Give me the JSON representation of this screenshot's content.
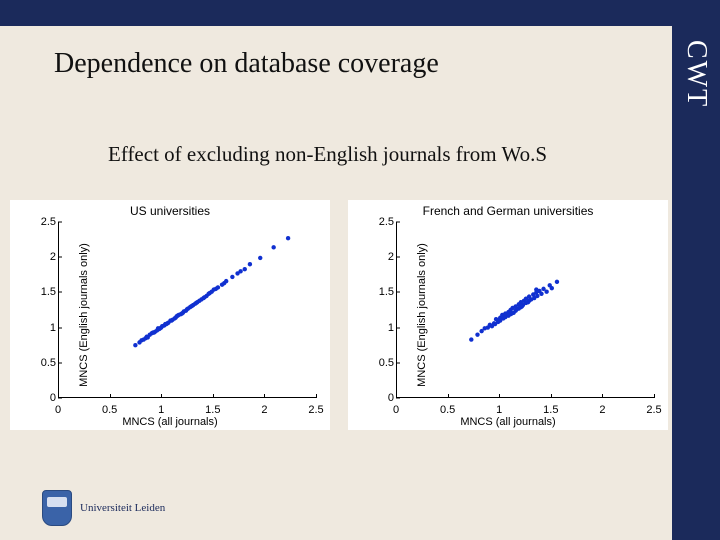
{
  "slide": {
    "title": "Dependence on database coverage",
    "subtitle": "Effect of excluding non-English journals from Wo.S",
    "background_color": "#efe9df",
    "accent_color": "#1b2a5b",
    "sidebar_text": "CWT"
  },
  "footer": {
    "university": "Universiteit Leiden",
    "crest_color": "#3a63a8"
  },
  "chart_common": {
    "xlabel": "MNCS (all journals)",
    "ylabel": "MNCS (English journals only)",
    "xlim": [
      0,
      2.5
    ],
    "ylim": [
      0,
      2.5
    ],
    "ticks": [
      0,
      0.5,
      1,
      1.5,
      2,
      2.5
    ],
    "tick_labels": [
      "0",
      "0.5",
      "1",
      "1.5",
      "2",
      "2.5"
    ],
    "marker_color": "#1030d0",
    "marker_size": 2.2,
    "background_color": "#ffffff",
    "axis_color": "#000000",
    "tick_fontsize": 11,
    "title_fontsize": 12,
    "label_fontsize": 11,
    "font_family": "Arial"
  },
  "charts": [
    {
      "title": "US universities",
      "type": "scatter",
      "points": [
        [
          0.74,
          0.75
        ],
        [
          0.78,
          0.79
        ],
        [
          0.82,
          0.83
        ],
        [
          0.84,
          0.85
        ],
        [
          0.86,
          0.86
        ],
        [
          0.88,
          0.9
        ],
        [
          0.9,
          0.92
        ],
        [
          0.92,
          0.93
        ],
        [
          0.93,
          0.94
        ],
        [
          0.95,
          0.96
        ],
        [
          0.96,
          0.99
        ],
        [
          0.98,
          0.99
        ],
        [
          0.99,
          1.0
        ],
        [
          1.0,
          1.02
        ],
        [
          1.02,
          1.03
        ],
        [
          1.03,
          1.05
        ],
        [
          1.05,
          1.06
        ],
        [
          1.06,
          1.07
        ],
        [
          1.08,
          1.1
        ],
        [
          1.1,
          1.11
        ],
        [
          1.12,
          1.13
        ],
        [
          1.13,
          1.14
        ],
        [
          1.15,
          1.17
        ],
        [
          1.16,
          1.18
        ],
        [
          1.18,
          1.19
        ],
        [
          1.2,
          1.21
        ],
        [
          1.21,
          1.23
        ],
        [
          1.23,
          1.24
        ],
        [
          1.25,
          1.27
        ],
        [
          1.27,
          1.29
        ],
        [
          1.28,
          1.3
        ],
        [
          1.3,
          1.32
        ],
        [
          1.32,
          1.34
        ],
        [
          1.34,
          1.36
        ],
        [
          1.36,
          1.38
        ],
        [
          1.38,
          1.4
        ],
        [
          1.4,
          1.42
        ],
        [
          1.43,
          1.45
        ],
        [
          1.45,
          1.48
        ],
        [
          1.48,
          1.51
        ],
        [
          1.5,
          1.54
        ],
        [
          1.54,
          1.57
        ],
        [
          1.58,
          1.61
        ],
        [
          1.62,
          1.66
        ],
        [
          1.68,
          1.72
        ],
        [
          1.73,
          1.77
        ],
        [
          1.8,
          1.83
        ],
        [
          1.85,
          1.9
        ],
        [
          1.95,
          1.99
        ],
        [
          2.08,
          2.14
        ],
        [
          2.22,
          2.27
        ],
        [
          0.8,
          0.82
        ],
        [
          0.85,
          0.87
        ],
        [
          0.91,
          0.93
        ],
        [
          0.97,
          0.98
        ],
        [
          1.04,
          1.05
        ],
        [
          1.09,
          1.1
        ],
        [
          1.14,
          1.16
        ],
        [
          1.19,
          1.2
        ],
        [
          1.24,
          1.26
        ],
        [
          1.29,
          1.31
        ],
        [
          1.33,
          1.35
        ],
        [
          1.41,
          1.43
        ],
        [
          1.46,
          1.49
        ],
        [
          1.52,
          1.55
        ],
        [
          1.6,
          1.63
        ],
        [
          1.76,
          1.8
        ]
      ]
    },
    {
      "title": "French and German universities",
      "type": "scatter",
      "points": [
        [
          0.72,
          0.83
        ],
        [
          0.78,
          0.9
        ],
        [
          0.82,
          0.95
        ],
        [
          0.85,
          0.99
        ],
        [
          0.88,
          1.0
        ],
        [
          0.9,
          1.04
        ],
        [
          0.92,
          1.02
        ],
        [
          0.94,
          1.06
        ],
        [
          0.96,
          1.12
        ],
        [
          0.98,
          1.08
        ],
        [
          1.0,
          1.14
        ],
        [
          1.0,
          1.1
        ],
        [
          1.02,
          1.18
        ],
        [
          1.03,
          1.13
        ],
        [
          1.05,
          1.2
        ],
        [
          1.05,
          1.15
        ],
        [
          1.08,
          1.22
        ],
        [
          1.08,
          1.17
        ],
        [
          1.1,
          1.25
        ],
        [
          1.1,
          1.19
        ],
        [
          1.12,
          1.28
        ],
        [
          1.13,
          1.21
        ],
        [
          1.15,
          1.3
        ],
        [
          1.15,
          1.24
        ],
        [
          1.18,
          1.33
        ],
        [
          1.18,
          1.27
        ],
        [
          1.2,
          1.36
        ],
        [
          1.2,
          1.29
        ],
        [
          1.22,
          1.32
        ],
        [
          1.23,
          1.38
        ],
        [
          1.25,
          1.35
        ],
        [
          1.25,
          1.41
        ],
        [
          1.28,
          1.38
        ],
        [
          1.28,
          1.44
        ],
        [
          1.3,
          1.4
        ],
        [
          1.32,
          1.47
        ],
        [
          1.33,
          1.42
        ],
        [
          1.35,
          1.5
        ],
        [
          1.36,
          1.45
        ],
        [
          1.38,
          1.52
        ],
        [
          1.4,
          1.48
        ],
        [
          1.42,
          1.55
        ],
        [
          1.45,
          1.51
        ],
        [
          1.48,
          1.6
        ],
        [
          1.5,
          1.56
        ],
        [
          1.55,
          1.65
        ],
        [
          1.35,
          1.54
        ],
        [
          0.95,
          1.05
        ],
        [
          0.99,
          1.11
        ],
        [
          1.04,
          1.16
        ],
        [
          1.11,
          1.2
        ],
        [
          1.16,
          1.26
        ],
        [
          1.21,
          1.3
        ],
        [
          1.27,
          1.36
        ]
      ]
    }
  ]
}
